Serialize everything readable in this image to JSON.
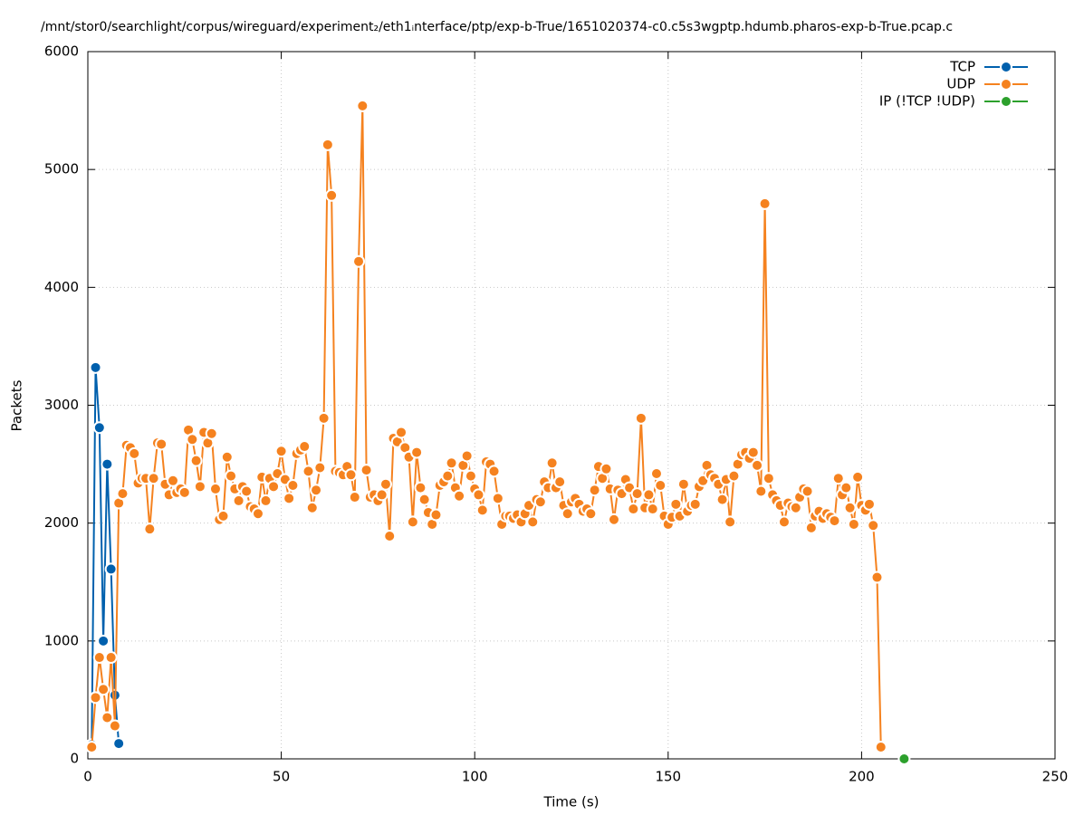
{
  "chart_data": {
    "type": "line",
    "title": "/mnt/stor0/searchlight/corpus/wireguard/experiment₂/eth1ᵢnterface/ptp/exp-b-True/1651020374-c0.c5s3wgptp.hdumb.pharos-exp-b-True.pcap.c",
    "x_label": "Time (s)",
    "y_label": "Packets",
    "xlim": [
      0,
      250
    ],
    "xticks": [
      0,
      50,
      100,
      150,
      200,
      250
    ],
    "ylim": [
      0,
      6000
    ],
    "yticks": [
      0,
      1000,
      2000,
      3000,
      4000,
      5000,
      6000
    ],
    "grid": true,
    "legend": "top-right",
    "series": [
      {
        "name": "TCP",
        "color": "#0060ad",
        "x": [
          1,
          2,
          3,
          4,
          5,
          6,
          7,
          8
        ],
        "values": [
          120,
          3320,
          2810,
          1000,
          2500,
          1610,
          540,
          130
        ]
      },
      {
        "name": "UDP",
        "color": "#f5821f",
        "x": [
          1,
          2,
          3,
          4,
          5,
          6,
          7,
          8,
          9,
          10,
          11,
          12,
          13,
          14,
          15,
          16,
          17,
          18,
          19,
          20,
          21,
          22,
          23,
          24,
          25,
          26,
          27,
          28,
          29,
          30,
          31,
          32,
          33,
          34,
          35,
          36,
          37,
          38,
          39,
          40,
          41,
          42,
          43,
          44,
          45,
          46,
          47,
          48,
          49,
          50,
          51,
          52,
          53,
          54,
          55,
          56,
          57,
          58,
          59,
          60,
          61,
          62,
          63,
          64,
          65,
          66,
          67,
          68,
          69,
          70,
          71,
          72,
          73,
          74,
          75,
          76,
          77,
          78,
          79,
          80,
          81,
          82,
          83,
          84,
          85,
          86,
          87,
          88,
          89,
          90,
          91,
          92,
          93,
          94,
          95,
          96,
          97,
          98,
          99,
          100,
          101,
          102,
          103,
          104,
          105,
          106,
          107,
          108,
          109,
          110,
          111,
          112,
          113,
          114,
          115,
          116,
          117,
          118,
          119,
          120,
          121,
          122,
          123,
          124,
          125,
          126,
          127,
          128,
          129,
          130,
          131,
          132,
          133,
          134,
          135,
          136,
          137,
          138,
          139,
          140,
          141,
          142,
          143,
          144,
          145,
          146,
          147,
          148,
          149,
          150,
          151,
          152,
          153,
          154,
          155,
          156,
          157,
          158,
          159,
          160,
          161,
          162,
          163,
          164,
          165,
          166,
          167,
          168,
          169,
          170,
          171,
          172,
          173,
          174,
          175,
          176,
          177,
          178,
          179,
          180,
          181,
          182,
          183,
          184,
          185,
          186,
          187,
          188,
          189,
          190,
          191,
          192,
          193,
          194,
          195,
          196,
          197,
          198,
          199,
          200,
          201,
          202,
          203,
          204,
          205
        ],
        "values": [
          100,
          520,
          860,
          590,
          350,
          860,
          280,
          2170,
          2250,
          2660,
          2640,
          2590,
          2340,
          2380,
          2380,
          1950,
          2380,
          2680,
          2670,
          2330,
          2240,
          2360,
          2260,
          2290,
          2260,
          2790,
          2710,
          2530,
          2310,
          2770,
          2680,
          2760,
          2290,
          2030,
          2060,
          2560,
          2400,
          2290,
          2190,
          2310,
          2270,
          2140,
          2120,
          2080,
          2390,
          2190,
          2380,
          2310,
          2420,
          2610,
          2370,
          2210,
          2320,
          2590,
          2620,
          2650,
          2440,
          2130,
          2280,
          2470,
          2890,
          5210,
          4780,
          2440,
          2430,
          2410,
          2480,
          2410,
          2220,
          4220,
          5540,
          2450,
          2220,
          2240,
          2190,
          2240,
          2330,
          1890,
          2720,
          2690,
          2770,
          2640,
          2560,
          2010,
          2600,
          2300,
          2200,
          2090,
          1990,
          2070,
          2320,
          2350,
          2400,
          2510,
          2300,
          2230,
          2490,
          2570,
          2400,
          2290,
          2240,
          2110,
          2520,
          2500,
          2440,
          2210,
          1990,
          2060,
          2060,
          2040,
          2070,
          2010,
          2080,
          2150,
          2010,
          2200,
          2180,
          2350,
          2300,
          2510,
          2300,
          2350,
          2150,
          2080,
          2180,
          2210,
          2160,
          2100,
          2120,
          2080,
          2280,
          2480,
          2380,
          2460,
          2290,
          2030,
          2280,
          2250,
          2370,
          2300,
          2120,
          2250,
          2890,
          2130,
          2240,
          2120,
          2420,
          2320,
          2060,
          1990,
          2050,
          2160,
          2060,
          2330,
          2100,
          2150,
          2160,
          2310,
          2360,
          2490,
          2410,
          2380,
          2330,
          2200,
          2370,
          2010,
          2400,
          2500,
          2580,
          2600,
          2550,
          2600,
          2490,
          2270,
          4710,
          2380,
          2240,
          2190,
          2150,
          2010,
          2170,
          2140,
          2130,
          2220,
          2290,
          2270,
          1960,
          2060,
          2100,
          2040,
          2080,
          2050,
          2020,
          2380,
          2240,
          2300,
          2130,
          1990,
          2390,
          2150,
          2110,
          2160,
          1980,
          1540,
          100
        ]
      },
      {
        "name": "IP (!TCP  !UDP)",
        "color": "#2ca02c",
        "x": [
          211
        ],
        "values": [
          0
        ]
      }
    ]
  }
}
